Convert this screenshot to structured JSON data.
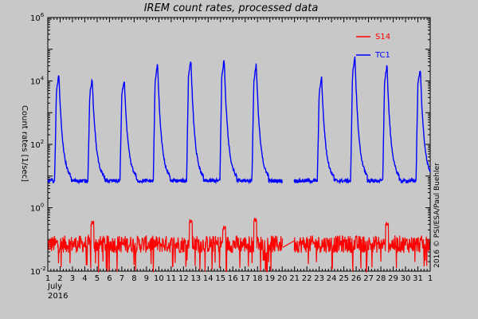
{
  "chart_data": {
    "type": "line",
    "title": "IREM count rates, processed data",
    "ylabel": "Count rates [1/sec]",
    "credit": "2016 © PSI/ESA/Paul Buehler",
    "yscale": "log",
    "ylim_exp": [
      -2,
      6
    ],
    "y_ticks": [
      {
        "exp": 6,
        "base": "10",
        "sup": "6"
      },
      {
        "exp": 4,
        "base": "10",
        "sup": "4"
      },
      {
        "exp": 2,
        "base": "10",
        "sup": "2"
      },
      {
        "exp": 0,
        "base": "10",
        "sup": "0"
      },
      {
        "exp": -2,
        "base": "10",
        "sup": "-2"
      }
    ],
    "x_tick_labels": [
      "1",
      "2",
      "3",
      "4",
      "5",
      "6",
      "7",
      "8",
      "9",
      "10",
      "11",
      "12",
      "13",
      "14",
      "15",
      "16",
      "17",
      "18",
      "19",
      "20",
      "21",
      "22",
      "23",
      "24",
      "25",
      "26",
      "27",
      "28",
      "29",
      "30",
      "31",
      "1"
    ],
    "x_month_label": "July",
    "x_year_label": "2016",
    "xlim_days": [
      1,
      32
    ],
    "gap_days": [
      20.05,
      20.95
    ],
    "series": [
      {
        "name": "S14",
        "color": "#ff0000",
        "baseline_exp": -1.15,
        "spikes": [
          {
            "day": 4.6,
            "exp": -0.4
          },
          {
            "day": 12.6,
            "exp": -0.35
          },
          {
            "day": 15.3,
            "exp": -0.55
          },
          {
            "day": 17.8,
            "exp": -0.3
          },
          {
            "day": 28.5,
            "exp": -0.4
          }
        ]
      },
      {
        "name": "TC1",
        "color": "#0000ff",
        "baseline_exp": 0.85,
        "peaks": [
          {
            "day": 1.9,
            "exp": 4.2
          },
          {
            "day": 4.6,
            "exp": 4.05
          },
          {
            "day": 7.2,
            "exp": 4.05
          },
          {
            "day": 9.9,
            "exp": 4.55
          },
          {
            "day": 12.6,
            "exp": 4.7
          },
          {
            "day": 15.3,
            "exp": 4.7
          },
          {
            "day": 17.9,
            "exp": 4.55
          },
          {
            "day": 23.2,
            "exp": 4.1
          },
          {
            "day": 25.9,
            "exp": 4.8
          },
          {
            "day": 28.5,
            "exp": 4.5
          },
          {
            "day": 31.2,
            "exp": 4.4
          }
        ]
      }
    ]
  }
}
